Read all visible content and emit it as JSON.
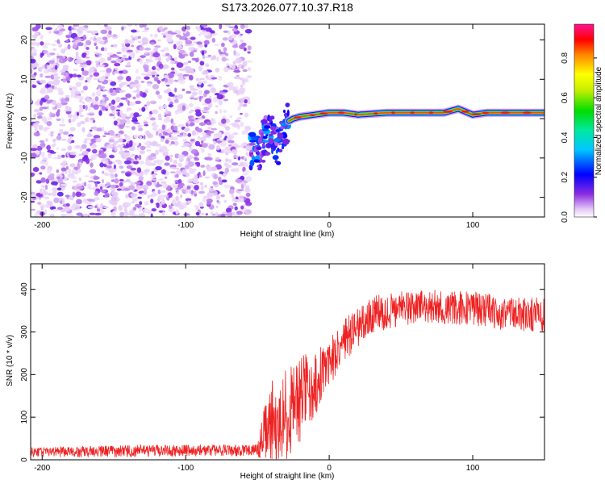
{
  "title": "S173.2026.077.10.37.R18",
  "chart_data": [
    {
      "type": "heatmap",
      "title": "S173.2026.077.10.37.R18",
      "xlabel": "Height of straight line (km)",
      "ylabel": "Frequency (Hz)",
      "xlim": [
        -208,
        150
      ],
      "ylim": [
        -25,
        24
      ],
      "x_ticks": [
        -200,
        -100,
        0,
        100
      ],
      "x_tick_labels": [
        "-200",
        "-100",
        "0",
        "100"
      ],
      "y_ticks": [
        -20,
        -10,
        0,
        10,
        20
      ],
      "y_tick_labels": [
        "-20",
        "-10",
        "0",
        "10",
        "20"
      ],
      "colorbar": {
        "label": "Normalized spectral amplitude",
        "range": [
          0,
          0.97
        ],
        "ticks": [
          0.0,
          0.2,
          0.4,
          0.6,
          0.8
        ],
        "tick_labels": [
          "0.0",
          "0.2",
          "0.4",
          "0.6",
          "0.8"
        ]
      },
      "regions": [
        {
          "name": "noise",
          "x_range": [
            -208,
            -55
          ],
          "freq_range": [
            -25,
            24
          ],
          "amplitude": 0.05
        },
        {
          "name": "transition",
          "x_range": [
            -55,
            -28
          ],
          "freq_center": -6,
          "amplitude": 0.25
        },
        {
          "name": "signal",
          "x_range": [
            -28,
            150
          ],
          "freq_center": 1.5,
          "amplitude": 0.9
        }
      ],
      "signal_track": {
        "x": [
          -55,
          -50,
          -45,
          -40,
          -35,
          -30,
          -25,
          -20,
          -10,
          0,
          10,
          20,
          40,
          60,
          80,
          90,
          100,
          110,
          130,
          150
        ],
        "freq": [
          -8,
          -10,
          -5,
          -4,
          -8,
          -1,
          0,
          0.5,
          1,
          1.5,
          1.5,
          1,
          1.5,
          1.5,
          1.5,
          2.5,
          1,
          1.5,
          1.5,
          1.5
        ]
      }
    },
    {
      "type": "line",
      "xlabel": "Height of straight line (km)",
      "ylabel": "SNR (10 * v/v)",
      "xlim": [
        -208,
        150
      ],
      "ylim": [
        0,
        460
      ],
      "x_ticks": [
        -200,
        -100,
        0,
        100
      ],
      "x_tick_labels": [
        "-200",
        "-100",
        "0",
        "100"
      ],
      "y_ticks": [
        0,
        100,
        200,
        300,
        400
      ],
      "y_tick_labels": [
        "0",
        "100",
        "200",
        "300",
        "400"
      ],
      "color": "#ee2222",
      "series": [
        {
          "name": "SNR",
          "x": [
            -208,
            -150,
            -100,
            -50,
            -45,
            -40,
            -35,
            -30,
            -25,
            -20,
            -15,
            -10,
            -5,
            0,
            10,
            20,
            30,
            50,
            70,
            100,
            120,
            150
          ],
          "y": [
            18,
            20,
            22,
            22,
            60,
            90,
            70,
            110,
            120,
            140,
            170,
            180,
            210,
            230,
            280,
            310,
            340,
            355,
            360,
            355,
            345,
            340
          ],
          "noise_amplitude": [
            12,
            14,
            14,
            14,
            70,
            100,
            90,
            110,
            100,
            100,
            90,
            80,
            70,
            60,
            50,
            45,
            45,
            40,
            40,
            40,
            40,
            40
          ]
        }
      ]
    }
  ]
}
